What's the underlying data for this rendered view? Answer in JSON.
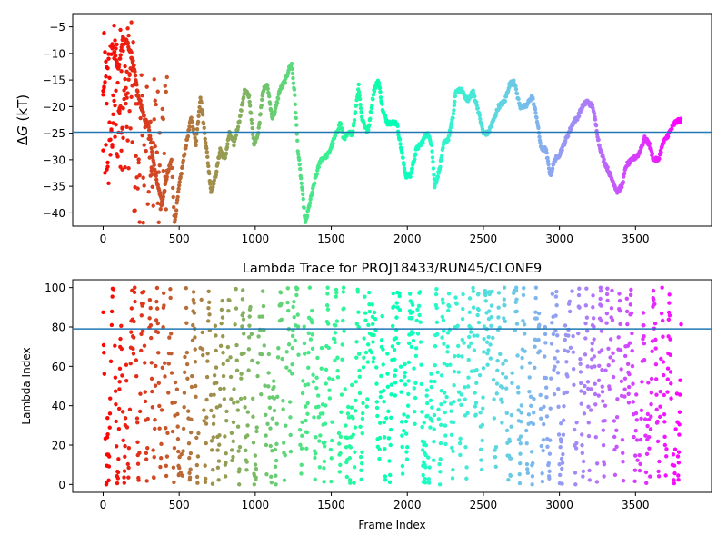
{
  "chart_data": [
    {
      "type": "scatter",
      "title": "",
      "xlabel": "",
      "ylabel": "ΔG (kT)",
      "xlim": [
        -200,
        4000
      ],
      "ylim": [
        -42.5,
        -2.5
      ],
      "xticks": [
        0,
        500,
        1000,
        1500,
        2000,
        2500,
        3000,
        3500
      ],
      "yticks": [
        -40,
        -35,
        -30,
        -25,
        -20,
        -15,
        -10,
        -5
      ],
      "hline": -24.8,
      "hline_color": "#1f77b4",
      "colormap": "rainbow (reversed along frame index: red at 0, purple at end)",
      "marker_size": 2.2,
      "x_max": 3800,
      "trace_points": [
        [
          60,
          -8
        ],
        [
          100,
          -13
        ],
        [
          130,
          -7
        ],
        [
          160,
          -8
        ],
        [
          200,
          -12
        ],
        [
          230,
          -18
        ],
        [
          270,
          -22
        ],
        [
          300,
          -24
        ],
        [
          330,
          -30
        ],
        [
          360,
          -35
        ],
        [
          390,
          -38
        ],
        [
          420,
          -33
        ],
        [
          450,
          -30
        ],
        [
          470,
          -42
        ],
        [
          500,
          -35
        ],
        [
          540,
          -28
        ],
        [
          580,
          -22
        ],
        [
          610,
          -27
        ],
        [
          640,
          -18
        ],
        [
          680,
          -28
        ],
        [
          710,
          -36
        ],
        [
          740,
          -33
        ],
        [
          770,
          -28
        ],
        [
          800,
          -30
        ],
        [
          830,
          -25
        ],
        [
          860,
          -27
        ],
        [
          900,
          -22
        ],
        [
          930,
          -17
        ],
        [
          960,
          -18
        ],
        [
          990,
          -27
        ],
        [
          1020,
          -25
        ],
        [
          1050,
          -17
        ],
        [
          1080,
          -16
        ],
        [
          1110,
          -22
        ],
        [
          1130,
          -21
        ],
        [
          1160,
          -17
        ],
        [
          1200,
          -15
        ],
        [
          1220,
          -13
        ],
        [
          1240,
          -12
        ],
        [
          1260,
          -18
        ],
        [
          1280,
          -28
        ],
        [
          1310,
          -36
        ],
        [
          1330,
          -42
        ],
        [
          1360,
          -38
        ],
        [
          1400,
          -33
        ],
        [
          1430,
          -30
        ],
        [
          1480,
          -29
        ],
        [
          1520,
          -26
        ],
        [
          1560,
          -23
        ],
        [
          1580,
          -26
        ],
        [
          1620,
          -25
        ],
        [
          1640,
          -25
        ],
        [
          1680,
          -16
        ],
        [
          1700,
          -22
        ],
        [
          1740,
          -25
        ],
        [
          1780,
          -17
        ],
        [
          1810,
          -15
        ],
        [
          1840,
          -21
        ],
        [
          1870,
          -23
        ],
        [
          1900,
          -23
        ],
        [
          1930,
          -23
        ],
        [
          1960,
          -28
        ],
        [
          1990,
          -33
        ],
        [
          2020,
          -33
        ],
        [
          2060,
          -28
        ],
        [
          2090,
          -27
        ],
        [
          2130,
          -25
        ],
        [
          2160,
          -27
        ],
        [
          2180,
          -35
        ],
        [
          2210,
          -32
        ],
        [
          2240,
          -27
        ],
        [
          2270,
          -26
        ],
        [
          2300,
          -22
        ],
        [
          2320,
          -17
        ],
        [
          2360,
          -17
        ],
        [
          2400,
          -19
        ],
        [
          2430,
          -17
        ],
        [
          2460,
          -20
        ],
        [
          2500,
          -25
        ],
        [
          2530,
          -25
        ],
        [
          2560,
          -23
        ],
        [
          2600,
          -20
        ],
        [
          2640,
          -19
        ],
        [
          2670,
          -16
        ],
        [
          2700,
          -15
        ],
        [
          2740,
          -20
        ],
        [
          2780,
          -20
        ],
        [
          2820,
          -18
        ],
        [
          2850,
          -22
        ],
        [
          2880,
          -28
        ],
        [
          2910,
          -28
        ],
        [
          2940,
          -33
        ],
        [
          2970,
          -30
        ],
        [
          3000,
          -29
        ],
        [
          3030,
          -27
        ],
        [
          3060,
          -25
        ],
        [
          3090,
          -23
        ],
        [
          3120,
          -22
        ],
        [
          3150,
          -20
        ],
        [
          3180,
          -19
        ],
        [
          3220,
          -20
        ],
        [
          3260,
          -27
        ],
        [
          3290,
          -30
        ],
        [
          3320,
          -32
        ],
        [
          3350,
          -34
        ],
        [
          3380,
          -36
        ],
        [
          3410,
          -35
        ],
        [
          3440,
          -31
        ],
        [
          3480,
          -30
        ],
        [
          3520,
          -29
        ],
        [
          3560,
          -26
        ],
        [
          3590,
          -27
        ],
        [
          3620,
          -30
        ],
        [
          3650,
          -30
        ],
        [
          3680,
          -27
        ],
        [
          3720,
          -25
        ],
        [
          3760,
          -23
        ],
        [
          3800,
          -22.5
        ]
      ],
      "early_scatter_range": [
        0,
        420
      ]
    },
    {
      "type": "scatter",
      "title": "Lambda Trace for PROJ18433/RUN45/CLONE9",
      "xlabel": "Frame Index",
      "ylabel": "Lambda Index",
      "xlim": [
        -200,
        4000
      ],
      "ylim": [
        -4,
        104
      ],
      "xticks": [
        0,
        500,
        1000,
        1500,
        2000,
        2500,
        3000,
        3500
      ],
      "yticks": [
        0,
        20,
        40,
        60,
        80,
        100
      ],
      "hline": 79,
      "hline_color": "#1f77b4",
      "colormap": "rainbow (reversed along frame index: red at 0, purple at end)",
      "marker_size": 2.2,
      "x_max": 3800,
      "value_range": [
        0,
        100
      ]
    }
  ]
}
